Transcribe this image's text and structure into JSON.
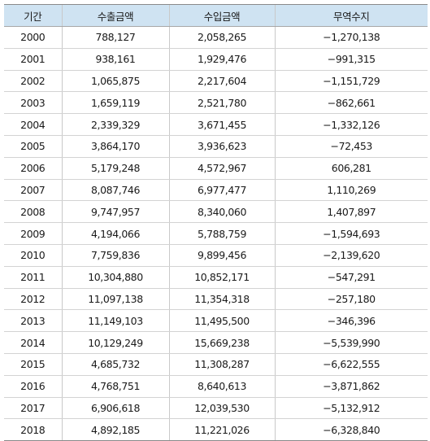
{
  "table": {
    "headers": [
      "기간",
      "수출금액",
      "수입금액",
      "무역수지"
    ],
    "rows": [
      [
        "2000",
        "788,127",
        "2,058,265",
        "−1,270,138"
      ],
      [
        "2001",
        "938,161",
        "1,929,476",
        "−991,315"
      ],
      [
        "2002",
        "1,065,875",
        "2,217,604",
        "−1,151,729"
      ],
      [
        "2003",
        "1,659,119",
        "2,521,780",
        "−862,661"
      ],
      [
        "2004",
        "2,339,329",
        "3,671,455",
        "−1,332,126"
      ],
      [
        "2005",
        "3,864,170",
        "3,936,623",
        "−72,453"
      ],
      [
        "2006",
        "5,179,248",
        "4,572,967",
        "606,281"
      ],
      [
        "2007",
        "8,087,746",
        "6,977,477",
        "1,110,269"
      ],
      [
        "2008",
        "9,747,957",
        "8,340,060",
        "1,407,897"
      ],
      [
        "2009",
        "4,194,066",
        "5,788,759",
        "−1,594,693"
      ],
      [
        "2010",
        "7,759,836",
        "9,899,456",
        "−2,139,620"
      ],
      [
        "2011",
        "10,304,880",
        "10,852,171",
        "−547,291"
      ],
      [
        "2012",
        "11,097,138",
        "11,354,318",
        "−257,180"
      ],
      [
        "2013",
        "11,149,103",
        "11,495,500",
        "−346,396"
      ],
      [
        "2014",
        "10,129,249",
        "15,669,238",
        "−5,539,990"
      ],
      [
        "2015",
        "4,685,732",
        "11,308,287",
        "−6,622,555"
      ],
      [
        "2016",
        "4,768,751",
        "8,640,613",
        "−3,871,862"
      ],
      [
        "2017",
        "6,906,618",
        "12,039,530",
        "−5,132,912"
      ],
      [
        "2018",
        "4,892,185",
        "11,221,026",
        "−6,328,840"
      ]
    ]
  },
  "colors": {
    "header_background": "#cfe3f2",
    "rule_dark": "#8a8a8a",
    "rule_light": "#d3d3d3"
  }
}
